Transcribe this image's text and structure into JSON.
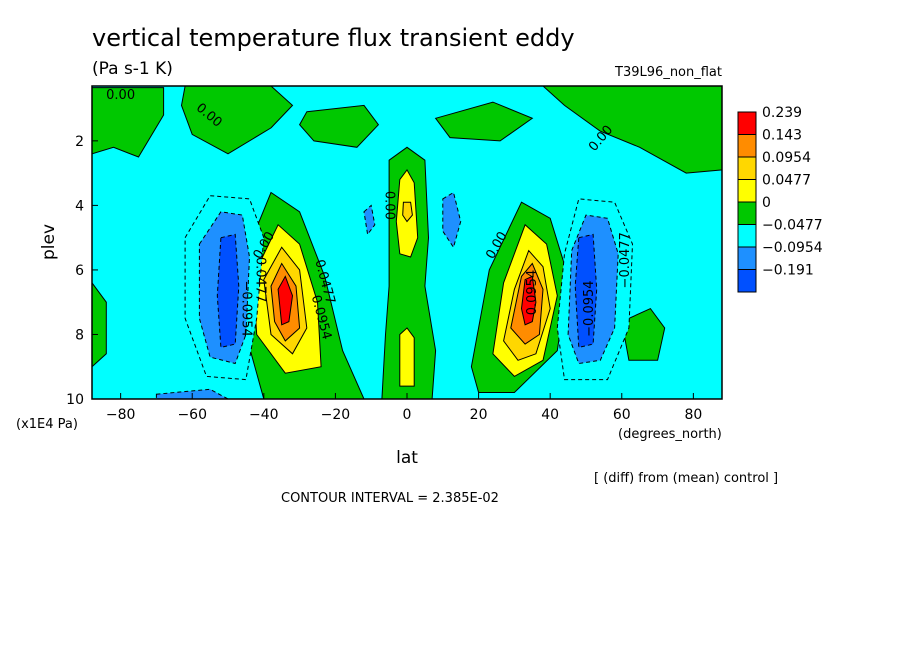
{
  "chart_data": {
    "type": "heatmap",
    "title": "vertical temperature flux transient eddy",
    "units": "(Pa s-1 K)",
    "run_label": "T39L96_non_flat",
    "xlabel": "lat",
    "xunits": "(degrees_north)",
    "ylabel": "plev",
    "yunits": "(x1E4 Pa)",
    "xlim": [
      -88,
      88
    ],
    "ylim": [
      10,
      0.3
    ],
    "x_ticks": [
      -80,
      -60,
      -40,
      -20,
      0,
      20,
      40,
      60,
      80
    ],
    "x_tick_labels": [
      "−80",
      "−60",
      "−40",
      "−20",
      "0",
      "20",
      "40",
      "60",
      "80"
    ],
    "y_ticks": [
      2,
      4,
      6,
      8,
      10
    ],
    "y_tick_labels": [
      "2",
      "4",
      "6",
      "8",
      "10"
    ],
    "footer_note": "[ (diff) from (mean) control ]",
    "contour_interval": "CONTOUR INTERVAL = 2.385E-02",
    "colorbar": {
      "labels": [
        "0.239",
        "0.143",
        "0.0954",
        "0.0477",
        "0",
        "−0.0477",
        "−0.0954",
        "−0.191"
      ],
      "colors": [
        "#ff0000",
        "#ff8c00",
        "#ffd700",
        "#ffff00",
        "#00c800",
        "#00ffff",
        "#1e90ff",
        "#0050ff"
      ]
    },
    "background_value_color": "#00ffff",
    "features": [
      {
        "name": "strat-positive-south",
        "kind": "positive",
        "level_color": "#00c800",
        "points": [
          [
            -88,
            0.35
          ],
          [
            -68,
            0.35
          ],
          [
            -68,
            1.2
          ],
          [
            -75,
            2.5
          ],
          [
            -82,
            2.2
          ],
          [
            -88,
            2.4
          ]
        ]
      },
      {
        "name": "strat-positive-left-mid",
        "kind": "positive",
        "level_color": "#00c800",
        "points": [
          [
            -62,
            0.3
          ],
          [
            -38,
            0.3
          ],
          [
            -32,
            0.9
          ],
          [
            -38,
            1.6
          ],
          [
            -50,
            2.4
          ],
          [
            -60,
            1.8
          ],
          [
            -63,
            0.9
          ]
        ]
      },
      {
        "name": "strat-positive-center",
        "kind": "positive",
        "level_color": "#00c800",
        "points": [
          [
            -28,
            1.1
          ],
          [
            -12,
            0.9
          ],
          [
            -8,
            1.5
          ],
          [
            -14,
            2.2
          ],
          [
            -26,
            2.0
          ],
          [
            -30,
            1.5
          ]
        ]
      },
      {
        "name": "strat-positive-right-mid",
        "kind": "positive",
        "level_color": "#00c800",
        "points": [
          [
            8,
            1.3
          ],
          [
            24,
            0.8
          ],
          [
            35,
            1.3
          ],
          [
            26,
            2.0
          ],
          [
            12,
            1.9
          ]
        ]
      },
      {
        "name": "strat-positive-north",
        "kind": "positive",
        "level_color": "#00c800",
        "points": [
          [
            38,
            0.3
          ],
          [
            88,
            0.3
          ],
          [
            88,
            2.9
          ],
          [
            78,
            3.0
          ],
          [
            65,
            2.2
          ],
          [
            54,
            1.7
          ],
          [
            44,
            0.9
          ]
        ]
      },
      {
        "name": "jet-positive-south",
        "kind": "positive",
        "level_color": "#00c800",
        "points": [
          [
            -45,
            5.5
          ],
          [
            -38,
            3.6
          ],
          [
            -30,
            4.2
          ],
          [
            -23,
            6.2
          ],
          [
            -18,
            8.5
          ],
          [
            -12,
            10.0
          ],
          [
            -40,
            10.0
          ],
          [
            -45,
            8.0
          ]
        ]
      },
      {
        "name": "jet-positive-south-l2",
        "kind": "positive",
        "level_color": "#ffff00",
        "points": [
          [
            -43,
            6.2
          ],
          [
            -36,
            4.6
          ],
          [
            -30,
            5.2
          ],
          [
            -25,
            7.0
          ],
          [
            -24,
            9.0
          ],
          [
            -34,
            9.2
          ],
          [
            -42,
            8.0
          ]
        ]
      },
      {
        "name": "jet-positive-south-l3",
        "kind": "positive",
        "level_color": "#ffd700",
        "points": [
          [
            -40,
            6.3
          ],
          [
            -35,
            5.3
          ],
          [
            -30,
            6.0
          ],
          [
            -28,
            7.8
          ],
          [
            -32,
            8.6
          ],
          [
            -38,
            8.0
          ]
        ]
      },
      {
        "name": "jet-positive-south-l4",
        "kind": "positive",
        "level_color": "#ff8c00",
        "points": [
          [
            -38,
            6.5
          ],
          [
            -35,
            5.8
          ],
          [
            -31,
            6.5
          ],
          [
            -30,
            7.8
          ],
          [
            -34,
            8.2
          ],
          [
            -37,
            7.6
          ]
        ]
      },
      {
        "name": "jet-positive-south-core",
        "kind": "positive",
        "level_color": "#ff0000",
        "points": [
          [
            -36,
            6.6
          ],
          [
            -34,
            6.2
          ],
          [
            -32,
            6.8
          ],
          [
            -33,
            7.6
          ],
          [
            -35,
            7.7
          ]
        ]
      },
      {
        "name": "jet-positive-north",
        "kind": "positive",
        "level_color": "#00c800",
        "points": [
          [
            18,
            9.0
          ],
          [
            23,
            6.0
          ],
          [
            32,
            3.9
          ],
          [
            40,
            4.4
          ],
          [
            45,
            6.2
          ],
          [
            42,
            8.5
          ],
          [
            30,
            9.8
          ],
          [
            20,
            9.8
          ]
        ]
      },
      {
        "name": "jet-positive-north-l2",
        "kind": "positive",
        "level_color": "#ffff00",
        "points": [
          [
            24,
            8.6
          ],
          [
            27,
            6.4
          ],
          [
            33,
            4.6
          ],
          [
            39,
            5.2
          ],
          [
            42,
            6.8
          ],
          [
            38,
            8.8
          ],
          [
            30,
            9.3
          ]
        ]
      },
      {
        "name": "jet-positive-north-l3",
        "kind": "positive",
        "level_color": "#ffd700",
        "points": [
          [
            27,
            8.2
          ],
          [
            30,
            6.6
          ],
          [
            34,
            5.4
          ],
          [
            38,
            5.9
          ],
          [
            40,
            7.2
          ],
          [
            36,
            8.6
          ],
          [
            31,
            8.8
          ]
        ]
      },
      {
        "name": "jet-positive-north-l4",
        "kind": "positive",
        "level_color": "#ff8c00",
        "points": [
          [
            29,
            7.8
          ],
          [
            32,
            6.2
          ],
          [
            35,
            5.8
          ],
          [
            38,
            6.6
          ],
          [
            37,
            8.0
          ],
          [
            33,
            8.3
          ]
        ]
      },
      {
        "name": "jet-positive-north-core",
        "kind": "positive",
        "level_color": "#ff0000",
        "points": [
          [
            32,
            7.2
          ],
          [
            33,
            6.3
          ],
          [
            35,
            6.2
          ],
          [
            36,
            7.0
          ],
          [
            35,
            7.6
          ],
          [
            33,
            7.7
          ]
        ]
      },
      {
        "name": "equator-positive",
        "kind": "positive",
        "level_color": "#00c800",
        "points": [
          [
            -5,
            2.6
          ],
          [
            0,
            2.2
          ],
          [
            5,
            2.6
          ],
          [
            6,
            5.0
          ],
          [
            5,
            6.5
          ],
          [
            8,
            8.5
          ],
          [
            7,
            10.0
          ],
          [
            -7,
            10.0
          ],
          [
            -6,
            8.0
          ],
          [
            -5,
            6.5
          ],
          [
            -5,
            5.0
          ]
        ]
      },
      {
        "name": "equator-positive-l2-upper",
        "kind": "positive",
        "level_color": "#ffff00",
        "points": [
          [
            -2,
            3.2
          ],
          [
            0,
            2.9
          ],
          [
            2,
            3.3
          ],
          [
            3,
            5.0
          ],
          [
            1,
            5.6
          ],
          [
            -2,
            5.5
          ],
          [
            -3,
            4.5
          ]
        ]
      },
      {
        "name": "equator-positive-core-upper",
        "kind": "positive",
        "level_color": "#ffd700",
        "points": [
          [
            -1,
            3.9
          ],
          [
            1,
            3.9
          ],
          [
            1.5,
            4.3
          ],
          [
            0,
            4.5
          ],
          [
            -1.2,
            4.3
          ]
        ]
      },
      {
        "name": "equator-positive-l2-lower",
        "kind": "positive",
        "level_color": "#ffff00",
        "points": [
          [
            -2,
            8.0
          ],
          [
            0,
            7.8
          ],
          [
            2,
            8.1
          ],
          [
            2,
            9.6
          ],
          [
            -2,
            9.6
          ]
        ]
      },
      {
        "name": "surface-positive-south",
        "kind": "positive",
        "level_color": "#00c800",
        "points": [
          [
            -88,
            6.4
          ],
          [
            -84,
            7.0
          ],
          [
            -84,
            8.6
          ],
          [
            -88,
            9.0
          ]
        ]
      },
      {
        "name": "surface-positive-mid",
        "kind": "positive",
        "level_color": "#00c800",
        "points": [
          [
            60,
            7.6
          ],
          [
            68,
            7.2
          ],
          [
            72,
            7.8
          ],
          [
            70,
            8.8
          ],
          [
            62,
            8.8
          ]
        ]
      },
      {
        "name": "trough-negative-south",
        "kind": "negative",
        "level_color": "#00ffff",
        "points": [
          [
            -62,
            5.0
          ],
          [
            -55,
            3.7
          ],
          [
            -44,
            3.8
          ],
          [
            -40,
            5.0
          ],
          [
            -42,
            7.5
          ],
          [
            -45,
            9.4
          ],
          [
            -56,
            9.3
          ],
          [
            -62,
            7.5
          ]
        ]
      },
      {
        "name": "trough-negative-south-l2",
        "kind": "negative",
        "level_color": "#1e90ff",
        "points": [
          [
            -58,
            5.2
          ],
          [
            -52,
            4.2
          ],
          [
            -46,
            4.3
          ],
          [
            -44,
            5.6
          ],
          [
            -45,
            8.0
          ],
          [
            -48,
            8.9
          ],
          [
            -55,
            8.7
          ],
          [
            -58,
            7.5
          ]
        ]
      },
      {
        "name": "trough-negative-south-core",
        "kind": "negative",
        "level_color": "#0050ff",
        "points": [
          [
            -52,
            5.0
          ],
          [
            -48,
            4.9
          ],
          [
            -47,
            6.5
          ],
          [
            -48,
            8.3
          ],
          [
            -52,
            8.4
          ],
          [
            -53,
            6.8
          ]
        ]
      },
      {
        "name": "trough-negative-north",
        "kind": "negative",
        "level_color": "#00ffff",
        "points": [
          [
            42,
            7.8
          ],
          [
            44,
            5.5
          ],
          [
            48,
            3.8
          ],
          [
            58,
            3.9
          ],
          [
            63,
            5.2
          ],
          [
            62,
            7.8
          ],
          [
            56,
            9.4
          ],
          [
            44,
            9.4
          ]
        ]
      },
      {
        "name": "trough-negative-north-l2",
        "kind": "negative",
        "level_color": "#1e90ff",
        "points": [
          [
            45,
            8.0
          ],
          [
            46,
            5.4
          ],
          [
            50,
            4.3
          ],
          [
            56,
            4.4
          ],
          [
            59,
            5.5
          ],
          [
            58,
            7.8
          ],
          [
            54,
            8.8
          ],
          [
            48,
            8.9
          ]
        ]
      },
      {
        "name": "trough-negative-north-core",
        "kind": "negative",
        "level_color": "#0050ff",
        "points": [
          [
            48,
            5.0
          ],
          [
            52,
            4.9
          ],
          [
            53,
            6.6
          ],
          [
            52,
            8.3
          ],
          [
            48,
            8.4
          ],
          [
            47,
            6.5
          ]
        ]
      },
      {
        "name": "small-negative-left",
        "kind": "negative",
        "level_color": "#1e90ff",
        "points": [
          [
            -12,
            4.2
          ],
          [
            -10,
            4.0
          ],
          [
            -9,
            4.6
          ],
          [
            -11,
            4.9
          ]
        ]
      },
      {
        "name": "small-negative-right",
        "kind": "negative",
        "level_color": "#1e90ff",
        "points": [
          [
            10,
            3.8
          ],
          [
            13,
            3.6
          ],
          [
            15,
            4.5
          ],
          [
            13,
            5.3
          ],
          [
            10,
            4.8
          ]
        ]
      },
      {
        "name": "surface-negative-band",
        "kind": "negative",
        "level_color": "#1e90ff",
        "points": [
          [
            -70,
            9.85
          ],
          [
            -55,
            9.7
          ],
          [
            -50,
            10.0
          ],
          [
            -70,
            10.0
          ]
        ]
      }
    ],
    "contour_labels": [
      {
        "text": "0.00",
        "x": -80,
        "y": 0.7,
        "rotate": 0
      },
      {
        "text": "0.00",
        "x": -56,
        "y": 1.3,
        "rotate": 40
      },
      {
        "text": "0.00",
        "x": 55,
        "y": 2.0,
        "rotate": -50
      },
      {
        "text": "0.00",
        "x": -6,
        "y": 4.0,
        "rotate": 90
      },
      {
        "text": "0.00",
        "x": -39,
        "y": 5.3,
        "rotate": -60
      },
      {
        "text": "0.00",
        "x": 26,
        "y": 5.3,
        "rotate": -60
      },
      {
        "text": "0.0477",
        "x": -42,
        "y": 6.3,
        "rotate": 90
      },
      {
        "text": "−0.0954",
        "x": -46,
        "y": 7.2,
        "rotate": 90
      },
      {
        "text": "0.0477",
        "x": -24,
        "y": 6.4,
        "rotate": 75
      },
      {
        "text": "0.0954",
        "x": -25,
        "y": 7.5,
        "rotate": 75
      },
      {
        "text": "0.0954",
        "x": 36,
        "y": 6.7,
        "rotate": -90
      },
      {
        "text": "−0.0954",
        "x": 52,
        "y": 7.2,
        "rotate": -90
      },
      {
        "text": "−0.0477",
        "x": 62,
        "y": 5.7,
        "rotate": -90
      }
    ],
    "grid": false
  }
}
